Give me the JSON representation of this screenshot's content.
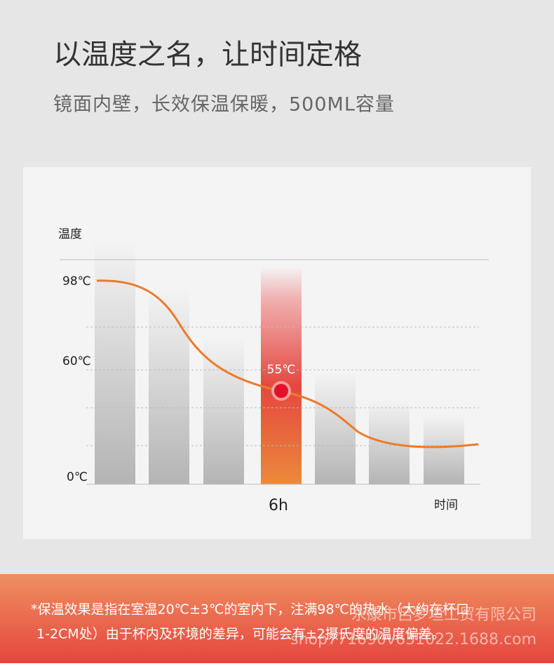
{
  "header": {
    "title": "以温度之名，让时间定格",
    "subtitle": "镜面内壁，长效保温保暖，500ML容量"
  },
  "diagram": {
    "y_axis_label": "温度",
    "y_labels": [
      "98℃",
      "60℃",
      "0℃"
    ],
    "highlight_label": "55℃",
    "x_label": "6h",
    "x_axis_label": "时间"
  },
  "note": {
    "lines": [
      "*保温效果是指在室温20℃±3℃的室内下，注满98℃的热水（大约在杯口",
      "1-2CM处）由于杯内及环境的差异，可能会有±2摄氏度的温度偏差。"
    ]
  },
  "watermark": {
    "lines": [
      "永康市吕梦垣工贸有限公司",
      "shop771690v631022.1688.com"
    ]
  }
}
